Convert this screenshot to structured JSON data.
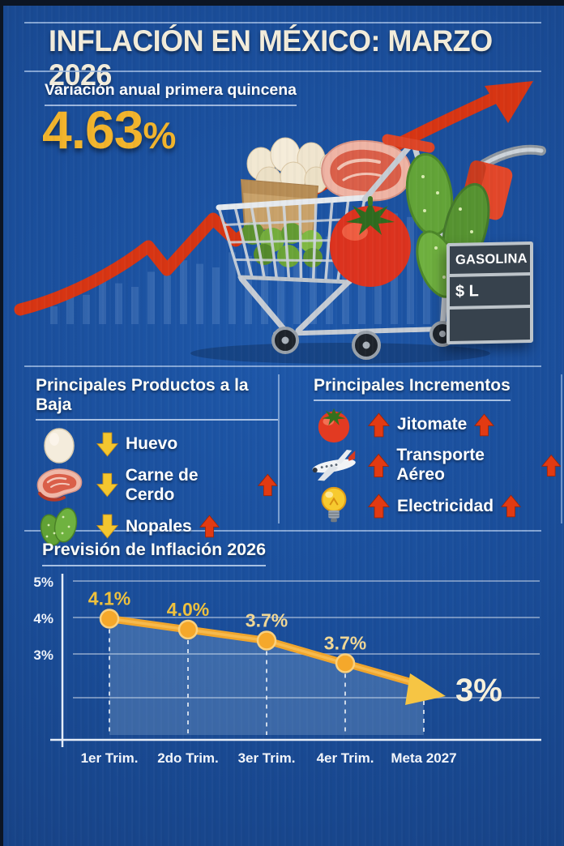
{
  "header": {
    "title": "INFLACIÓN EN MÉXICO: MARZO 2026"
  },
  "hero": {
    "subtitle": "Variación anual primera quincena",
    "value_main": "4.63",
    "value_pct": "%",
    "gas_sign": {
      "title": "GASOLINA",
      "price": "$ L"
    },
    "illustration_icons": [
      "rising-trend-arrow",
      "bar-chart-backdrop",
      "shopping-cart",
      "egg-carton",
      "meat-cut",
      "tomato",
      "nopales",
      "gas-pump-nozzle"
    ]
  },
  "sections": {
    "decreases": {
      "title": "Principales Productos a la Baja",
      "items": [
        {
          "icon": "egg-icon",
          "label": "Huevo",
          "trend": "down"
        },
        {
          "icon": "pork-meat-icon",
          "label": "Carne de Cerdo",
          "trend": "down-up"
        },
        {
          "icon": "nopal-icon",
          "label": "Nopales",
          "trend": "down-up"
        }
      ]
    },
    "increases": {
      "title": "Principales Incrementos",
      "items": [
        {
          "icon": "tomato-icon",
          "label": "Jitomate",
          "trend": "up"
        },
        {
          "icon": "airplane-icon",
          "label": "Transporte Aéreo",
          "trend": "up"
        },
        {
          "icon": "lightbulb-icon",
          "label": "Electricidad",
          "trend": "up"
        }
      ]
    }
  },
  "forecast": {
    "title": "Previsión de Inflación 2026"
  },
  "chart_data": {
    "type": "line",
    "title": "Previsión de Inflación 2026",
    "categories": [
      "1er Trim.",
      "2do Trim.",
      "3er Trim.",
      "4er Trim.",
      "Meta 2027"
    ],
    "values": [
      4.1,
      4.0,
      3.7,
      3.7,
      3.0
    ],
    "point_labels": [
      "4.1%",
      "4.0%",
      "3.7%",
      "3.7%",
      "3%"
    ],
    "ytick_labels": [
      "5%",
      "4%",
      "3%"
    ],
    "ylim": [
      2,
      5
    ],
    "xlabel": "",
    "ylabel": "",
    "grid": true,
    "legend": "none",
    "line_color": "#f0a52c",
    "marker_color": "#f5a82b",
    "label_color": "#f2d383",
    "final_label_color": "#f7f0da"
  },
  "colors": {
    "background": "#1a4d99",
    "accent_gold": "#f2b42c",
    "accent_red": "#de3a16",
    "cream": "#f3eddb",
    "sign_bg": "#37424d"
  }
}
